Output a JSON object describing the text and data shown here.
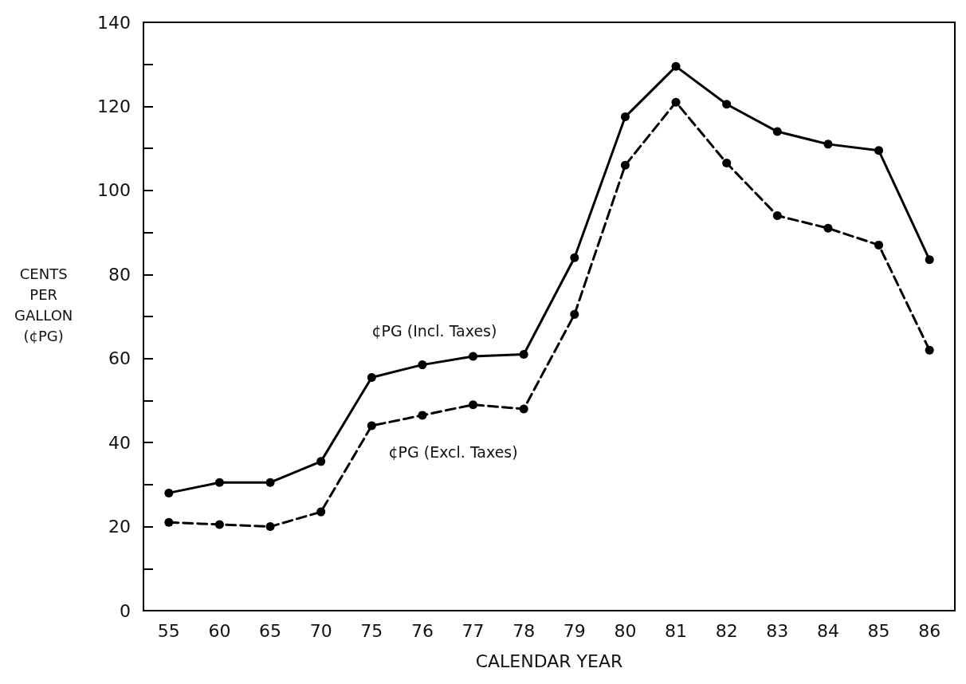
{
  "chart_data": {
    "type": "line",
    "xlabel": "CALENDAR YEAR",
    "ylabel": "CENTS PER GALLON (¢PG)",
    "categories": [
      "55",
      "60",
      "65",
      "70",
      "75",
      "76",
      "77",
      "78",
      "79",
      "80",
      "81",
      "82",
      "83",
      "84",
      "85",
      "86"
    ],
    "series": [
      {
        "name": "¢PG (Incl. Taxes)",
        "color": "#000000",
        "line_style": "solid",
        "values": [
          28,
          30.5,
          30.5,
          35.5,
          55.5,
          58.5,
          60.5,
          61,
          84,
          117.5,
          129.5,
          120.5,
          114,
          111,
          109.5,
          83.5
        ]
      },
      {
        "name": "¢PG (Excl. Taxes)",
        "color": "#000000",
        "line_style": "dashed",
        "values": [
          21,
          20.5,
          20,
          23.5,
          44,
          46.5,
          49,
          48,
          70.5,
          106,
          121,
          106.5,
          94,
          91,
          87,
          62
        ]
      }
    ],
    "ylim": [
      0,
      140
    ],
    "yticks": [
      0,
      {
        "value": 10,
        "label": null
      },
      20,
      {
        "value": 30,
        "label": null
      },
      40,
      {
        "value": 50,
        "label": null
      },
      60,
      {
        "value": 70,
        "label": null
      },
      80,
      {
        "value": 90,
        "label": null
      },
      100,
      {
        "value": 110,
        "label": null
      },
      120,
      {
        "value": 130,
        "label": null
      },
      140
    ],
    "grid": false,
    "legend": false,
    "marker": "circle"
  }
}
